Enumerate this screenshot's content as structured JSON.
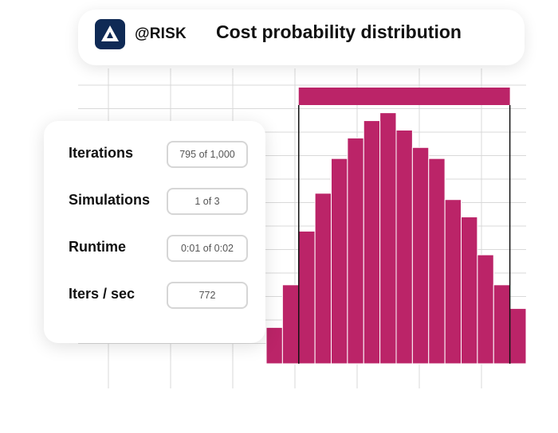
{
  "header": {
    "app_name": "@RISK",
    "title": "Cost probability distribution",
    "logo_icon": "arisk-logo-icon"
  },
  "stats": {
    "items": [
      {
        "label": "Iterations",
        "value": "795 of 1,000"
      },
      {
        "label": "Simulations",
        "value": "1 of 3"
      },
      {
        "label": "Runtime",
        "value": "0:01 of 0:02"
      },
      {
        "label": "Iters / sec",
        "value": "772"
      }
    ]
  },
  "colors": {
    "bar": "#bb2468",
    "grid": "#d9d9d9",
    "marker_line": "#111111",
    "logo_bg": "#0f2a55"
  },
  "chart_data": {
    "type": "bar",
    "title": "Cost probability distribution",
    "xlabel": "",
    "ylabel": "",
    "grid": true,
    "values": [
      2.3,
      5.0,
      8.4,
      10.8,
      13.0,
      14.3,
      15.4,
      15.9,
      14.8,
      13.7,
      13.0,
      10.4,
      9.3,
      6.9,
      5.0,
      3.5
    ],
    "ylim": [
      0,
      18
    ],
    "range_markers": {
      "start_bar_index": 2,
      "end_bar_index": 15
    }
  }
}
